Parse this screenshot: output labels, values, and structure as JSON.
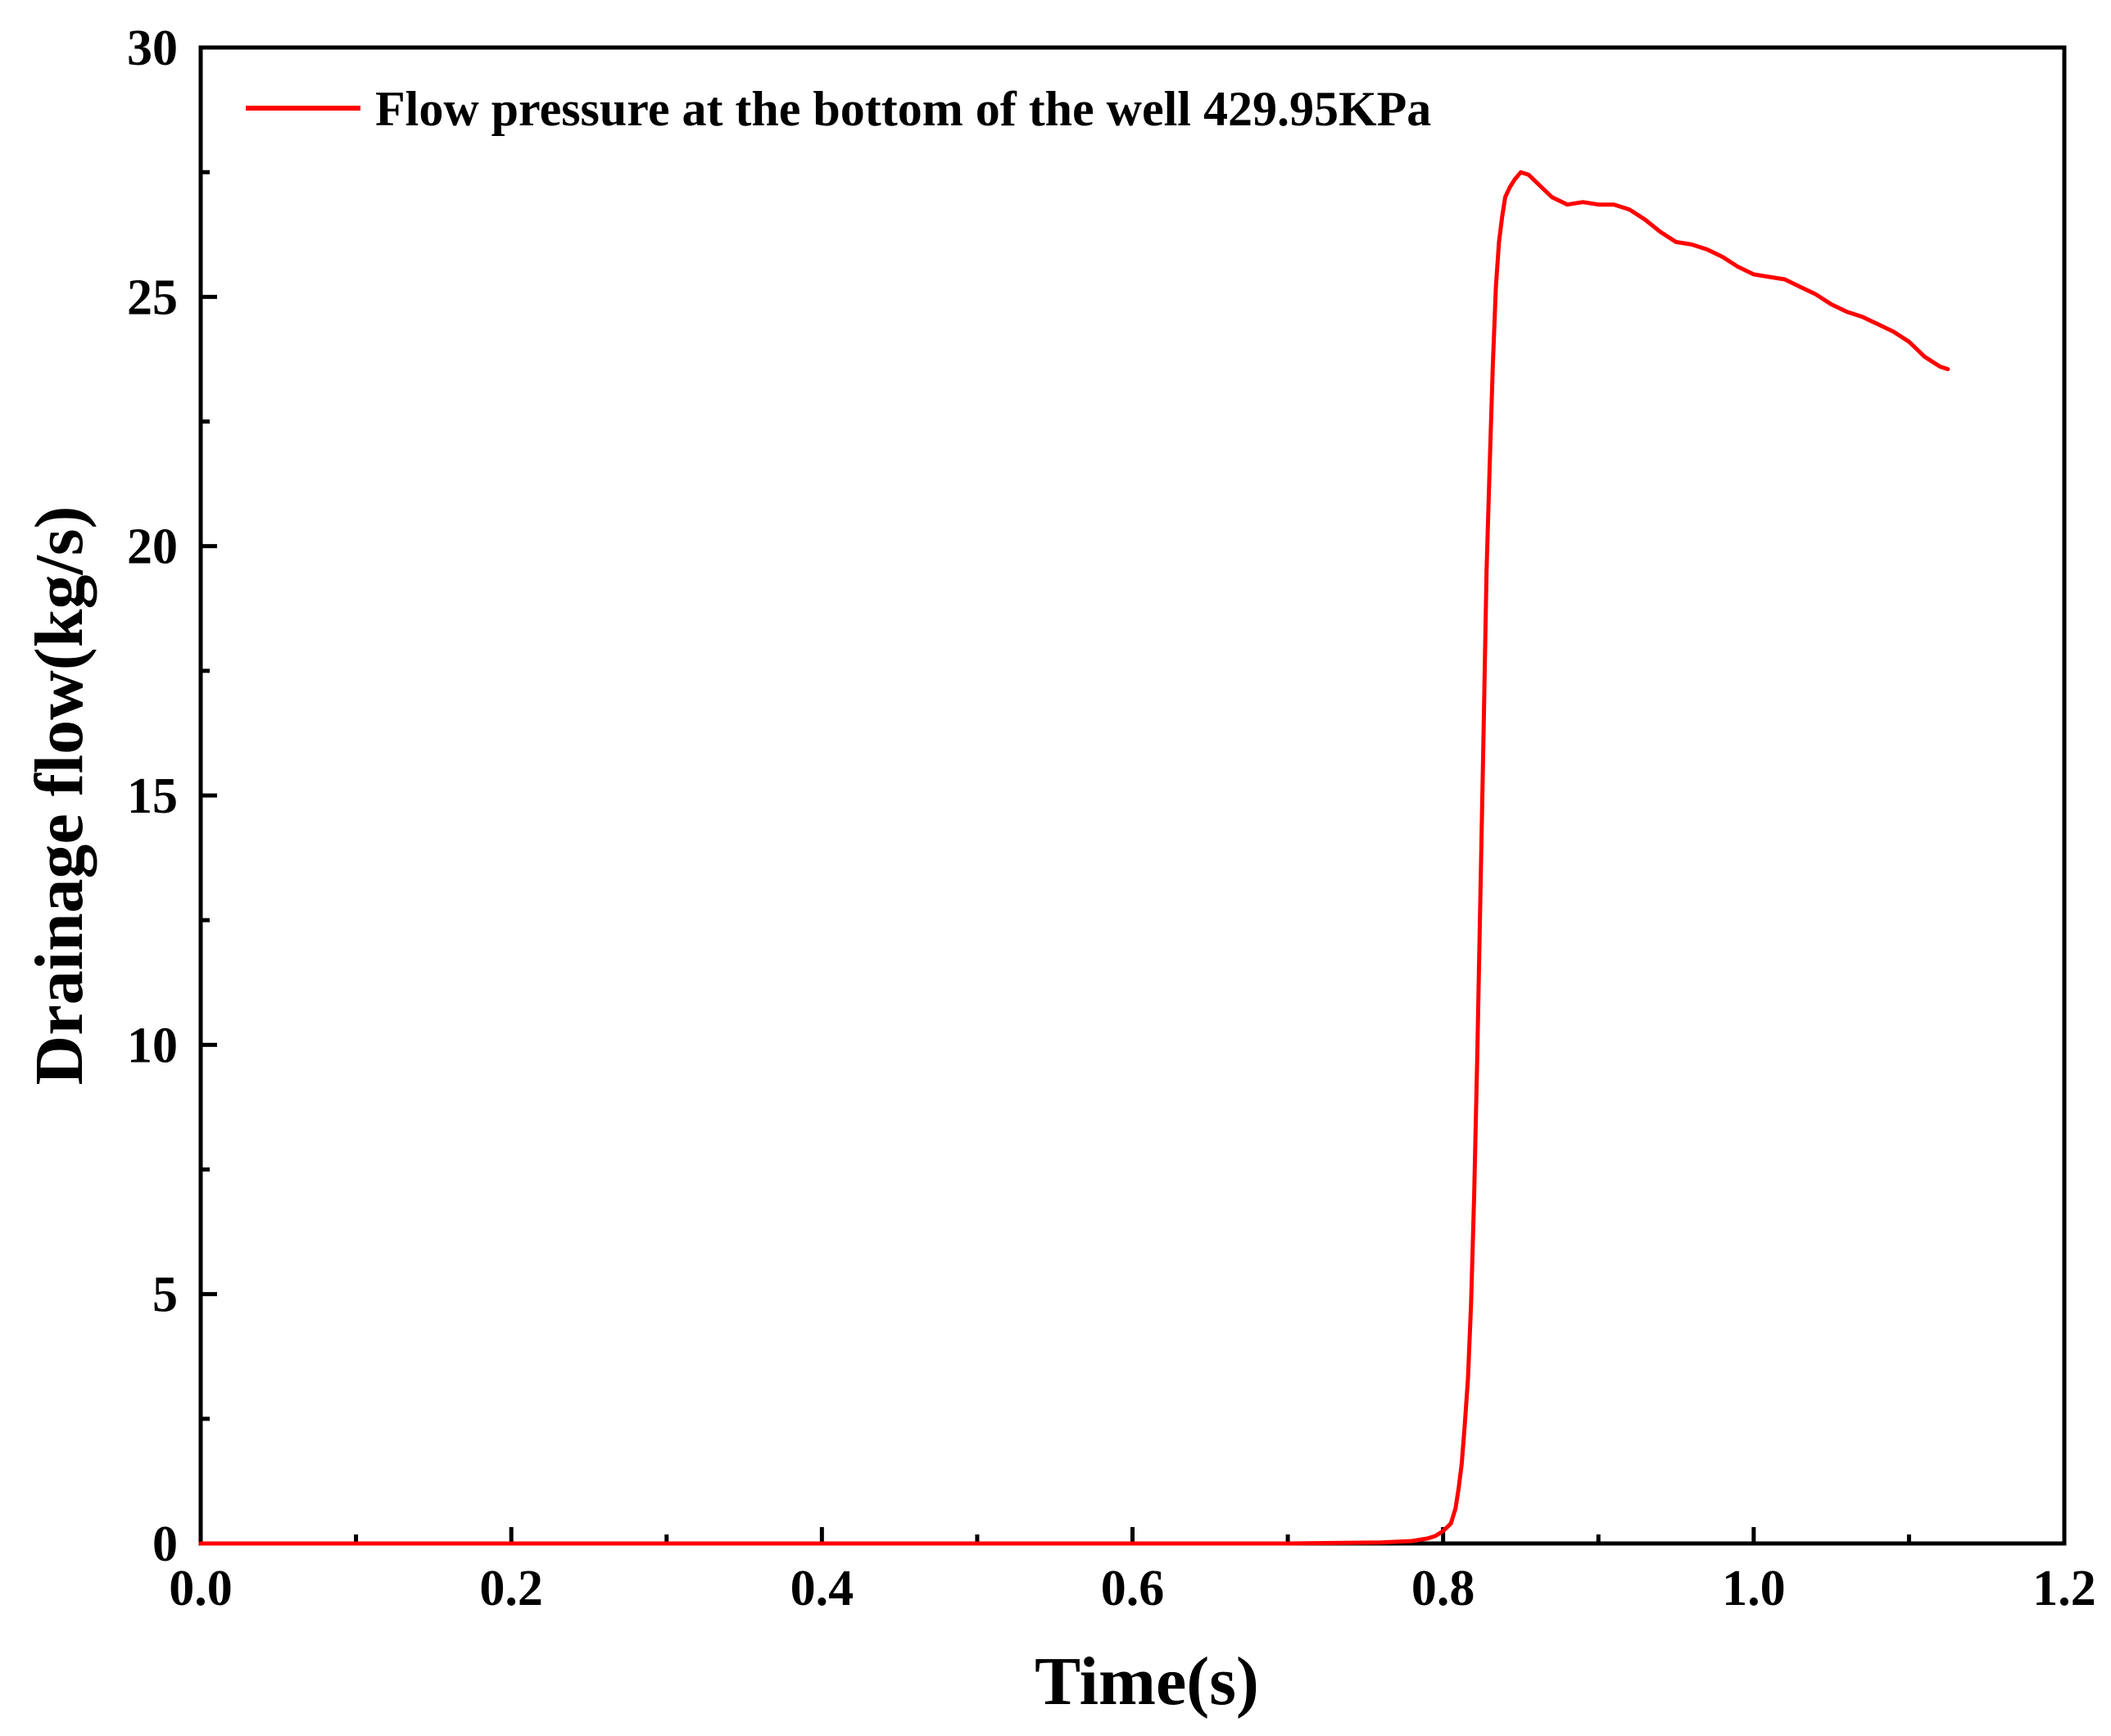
{
  "chart_data": {
    "type": "line",
    "title": "",
    "xlabel": "Time(s)",
    "ylabel": "Drainage flow(kg/s)",
    "xlim": [
      0.0,
      1.2
    ],
    "ylim": [
      0,
      30
    ],
    "x_ticks": [
      "0.0",
      "0.2",
      "0.4",
      "0.6",
      "0.8",
      "1.0",
      "1.2"
    ],
    "x_tick_values": [
      0.0,
      0.2,
      0.4,
      0.6,
      0.8,
      1.0,
      1.2
    ],
    "x_minor_ticks": [
      0.1,
      0.3,
      0.5,
      0.7,
      0.9,
      1.1
    ],
    "y_ticks": [
      "0",
      "5",
      "10",
      "15",
      "20",
      "25",
      "30"
    ],
    "y_tick_values": [
      0,
      5,
      10,
      15,
      20,
      25,
      30
    ],
    "y_minor_ticks": [
      2.5,
      7.5,
      12.5,
      17.5,
      22.5,
      27.5
    ],
    "grid": false,
    "legend_position": "top-left",
    "series": [
      {
        "name": "Flow pressure at the bottom of the well 429.95KPa",
        "color": "#ff0000",
        "x": [
          0.0,
          0.2,
          0.4,
          0.6,
          0.7,
          0.76,
          0.78,
          0.79,
          0.795,
          0.8,
          0.805,
          0.808,
          0.81,
          0.812,
          0.814,
          0.816,
          0.818,
          0.82,
          0.822,
          0.824,
          0.826,
          0.828,
          0.83,
          0.832,
          0.834,
          0.836,
          0.838,
          0.84,
          0.843,
          0.846,
          0.85,
          0.855,
          0.86,
          0.865,
          0.87,
          0.88,
          0.89,
          0.9,
          0.91,
          0.92,
          0.93,
          0.94,
          0.95,
          0.96,
          0.97,
          0.98,
          0.99,
          1.0,
          1.01,
          1.02,
          1.03,
          1.04,
          1.05,
          1.06,
          1.07,
          1.08,
          1.09,
          1.1,
          1.105,
          1.11,
          1.115,
          1.12,
          1.125
        ],
        "y": [
          0.0,
          0.0,
          0.0,
          0.0,
          0.0,
          0.02,
          0.05,
          0.1,
          0.15,
          0.25,
          0.4,
          0.7,
          1.1,
          1.6,
          2.4,
          3.3,
          4.8,
          7.0,
          9.8,
          13.0,
          16.2,
          19.5,
          21.6,
          23.6,
          25.2,
          26.1,
          26.6,
          27.0,
          27.2,
          27.35,
          27.5,
          27.45,
          27.3,
          27.15,
          27.0,
          26.85,
          26.9,
          26.85,
          26.85,
          26.75,
          26.55,
          26.3,
          26.1,
          26.05,
          25.95,
          25.8,
          25.6,
          25.45,
          25.4,
          25.35,
          25.2,
          25.05,
          24.85,
          24.7,
          24.6,
          24.45,
          24.3,
          24.1,
          23.95,
          23.8,
          23.7,
          23.6,
          23.55
        ]
      }
    ]
  }
}
